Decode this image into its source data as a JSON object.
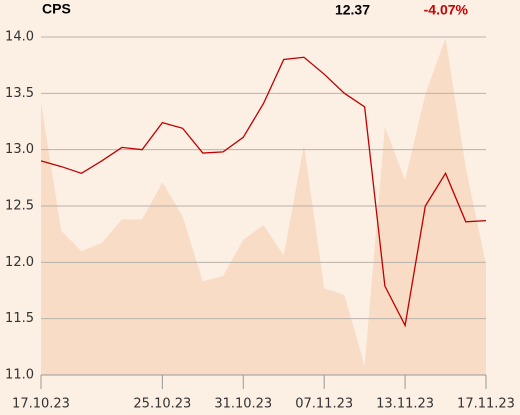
{
  "chart_data": {
    "type": "line",
    "title": "CPS",
    "price": "12.37",
    "change": "-4.07%",
    "categories": [
      "17.10.23",
      null,
      null,
      null,
      null,
      null,
      "25.10.23",
      null,
      null,
      null,
      "31.10.23",
      null,
      null,
      null,
      "07.11.23",
      null,
      null,
      null,
      "13.11.23",
      null,
      null,
      null,
      "17.11.23"
    ],
    "series": [
      {
        "type": "area",
        "color": "#f8dcc6",
        "values": [
          13.42,
          12.28,
          12.1,
          12.17,
          12.38,
          12.38,
          12.71,
          12.41,
          11.83,
          11.88,
          12.2,
          12.33,
          12.06,
          13.04,
          11.77,
          11.71,
          11.08,
          13.2,
          12.73,
          13.49,
          13.99,
          12.84,
          11.98
        ]
      },
      {
        "type": "line",
        "color": "#c00000",
        "values": [
          12.9,
          12.85,
          12.79,
          12.9,
          13.02,
          13.0,
          13.24,
          13.19,
          12.97,
          12.98,
          13.11,
          13.41,
          13.8,
          13.82,
          13.67,
          13.5,
          13.38,
          11.79,
          11.44,
          12.5,
          12.79,
          12.36,
          12.37
        ]
      }
    ],
    "ylim": [
      11.0,
      14.0
    ],
    "yticks": [
      {
        "value": 11.0,
        "label": "11.0"
      },
      {
        "value": 11.5,
        "label": "11.5"
      },
      {
        "value": 12.0,
        "label": "12.0"
      },
      {
        "value": 12.5,
        "label": "12.5"
      },
      {
        "value": 13.0,
        "label": "13.0"
      },
      {
        "value": 13.5,
        "label": "13.5"
      },
      {
        "value": 14.0,
        "label": "14.0"
      }
    ],
    "grid": true,
    "change_color": "#cc0000"
  }
}
